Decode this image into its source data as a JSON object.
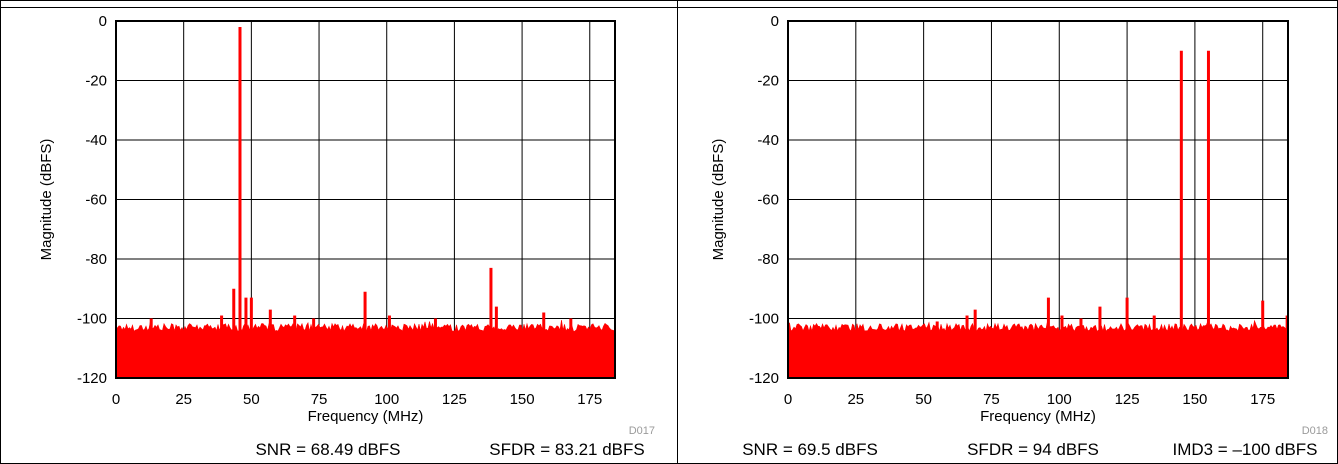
{
  "panels": [
    {
      "figure_id": "D017",
      "footer": [
        "SNR = 68.49 dBFS",
        "SFDR = 83.21 dBFS"
      ]
    },
    {
      "figure_id": "D018",
      "footer": [
        "SNR = 69.5 dBFS",
        "SFDR = 94 dBFS",
        "IMD3 = –100 dBFS"
      ]
    }
  ],
  "colors": {
    "trace": "#ff0000",
    "grid": "#000000",
    "frame": "#000000"
  },
  "chart_data": [
    {
      "type": "bar",
      "title": "",
      "xlabel": "Frequency (MHz)",
      "ylabel": "Magnitude (dBFS)",
      "xlim": [
        0,
        184.32
      ],
      "ylim": [
        -120,
        0
      ],
      "xticks": [
        0,
        25,
        50,
        75,
        100,
        125,
        150,
        175
      ],
      "yticks": [
        0,
        -20,
        -40,
        -60,
        -80,
        -100,
        -120
      ],
      "grid": true,
      "noise_floor_dBFS": -103,
      "series": [
        {
          "x": [
            13,
            39,
            43.5,
            45.8,
            48,
            50,
            57,
            66,
            73,
            92,
            101,
            118,
            138.5,
            140.5,
            158,
            168
          ],
          "values": [
            -100,
            -99,
            -90,
            -2,
            -93,
            -93,
            -97,
            -99,
            -100,
            -91,
            -99,
            -100,
            -83,
            -96,
            -98,
            -100
          ]
        }
      ]
    },
    {
      "type": "bar",
      "title": "",
      "xlabel": "Frequency (MHz)",
      "ylabel": "Magnitude (dBFS)",
      "xlim": [
        0,
        184.32
      ],
      "ylim": [
        -120,
        0
      ],
      "xticks": [
        0,
        25,
        50,
        75,
        100,
        125,
        150,
        175
      ],
      "yticks": [
        0,
        -20,
        -40,
        -60,
        -80,
        -100,
        -120
      ],
      "grid": true,
      "noise_floor_dBFS": -103,
      "series": [
        {
          "x": [
            55,
            66,
            69,
            96,
            101,
            108,
            115,
            125,
            135,
            145,
            155,
            175,
            184
          ],
          "values": [
            -101,
            -99,
            -97,
            -93,
            -99,
            -100,
            -96,
            -93,
            -99,
            -10,
            -10,
            -94,
            -99
          ]
        }
      ]
    }
  ]
}
